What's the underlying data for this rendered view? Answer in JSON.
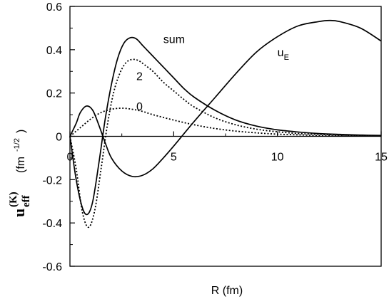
{
  "chart_data": {
    "type": "line",
    "xlabel": "R (fm)",
    "ylabel": {
      "symbol": "u",
      "superscript": "(K)",
      "subscript": "eff",
      "unit": "(fm",
      "unit_exp": "-1/2",
      "unit_close": ")"
    },
    "xlim": [
      0,
      15
    ],
    "ylim": [
      -0.6,
      0.6
    ],
    "x_ticks": [
      0,
      5,
      10,
      15
    ],
    "x_tick_labels": [
      "0",
      "5",
      "10",
      "15"
    ],
    "y_ticks": [
      -0.6,
      -0.4,
      -0.2,
      0,
      0.2,
      0.4,
      0.6
    ],
    "y_tick_labels": [
      "-0.6",
      "-0.4",
      "-0.2",
      "0",
      "0.2",
      "0.4",
      "0.6"
    ],
    "grid": false,
    "series": [
      {
        "name": "sum",
        "style": "solid",
        "x": [
          0,
          0.3,
          0.6,
          0.85,
          1.1,
          1.4,
          1.7,
          2.0,
          2.3,
          2.6,
          2.9,
          3.2,
          3.5,
          3.8,
          4.2,
          4.6,
          5.0,
          5.5,
          6.0,
          7.0,
          8.0,
          9.0,
          10.0,
          11.0,
          12.0,
          13.0,
          14.0,
          15.0
        ],
        "y": [
          0,
          -0.2,
          -0.33,
          -0.36,
          -0.3,
          -0.12,
          0.08,
          0.24,
          0.36,
          0.43,
          0.455,
          0.45,
          0.42,
          0.39,
          0.35,
          0.31,
          0.27,
          0.22,
          0.18,
          0.12,
          0.075,
          0.047,
          0.03,
          0.02,
          0.013,
          0.009,
          0.006,
          0.004
        ]
      },
      {
        "name": "2",
        "style": "dotted",
        "x": [
          0,
          0.3,
          0.6,
          0.9,
          1.2,
          1.5,
          1.8,
          2.1,
          2.4,
          2.7,
          3.0,
          3.3,
          3.6,
          4.0,
          4.5,
          5.0,
          5.5,
          6.0,
          7.0,
          8.0,
          9.0,
          10.0,
          11.0,
          12.0,
          13.0,
          14.0,
          15.0
        ],
        "y": [
          0,
          -0.15,
          -0.35,
          -0.42,
          -0.34,
          -0.15,
          0.05,
          0.2,
          0.29,
          0.34,
          0.355,
          0.35,
          0.33,
          0.3,
          0.25,
          0.21,
          0.17,
          0.135,
          0.085,
          0.053,
          0.033,
          0.021,
          0.013,
          0.009,
          0.006,
          0.004,
          0.003
        ]
      },
      {
        "name": "0",
        "style": "dotted",
        "x": [
          0,
          0.5,
          1.0,
          1.5,
          2.0,
          2.5,
          3.0,
          3.5,
          4.0,
          5.0,
          6.0,
          7.0,
          8.0,
          9.0,
          10.0,
          11.0,
          12.0,
          13.0,
          14.0,
          15.0
        ],
        "y": [
          0,
          0.04,
          0.08,
          0.11,
          0.125,
          0.13,
          0.125,
          0.115,
          0.1,
          0.075,
          0.053,
          0.036,
          0.024,
          0.016,
          0.01,
          0.007,
          0.004,
          0.003,
          0.002,
          0.001
        ]
      },
      {
        "name": "u_E",
        "style": "solid",
        "x": [
          0,
          0.3,
          0.5,
          0.8,
          1.1,
          1.4,
          1.7,
          2.0,
          2.5,
          3.0,
          3.5,
          4.0,
          4.5,
          5.0,
          6.0,
          7.0,
          8.0,
          9.0,
          10.0,
          11.0,
          12.0,
          12.5,
          13.0,
          14.0,
          15.0
        ],
        "y": [
          0,
          0.06,
          0.11,
          0.14,
          0.12,
          0.05,
          -0.03,
          -0.1,
          -0.16,
          -0.185,
          -0.18,
          -0.15,
          -0.1,
          -0.045,
          0.07,
          0.18,
          0.29,
          0.39,
          0.46,
          0.51,
          0.53,
          0.535,
          0.53,
          0.5,
          0.44
        ]
      }
    ],
    "annotations": [
      {
        "text": "sum",
        "x": 4.5,
        "y": 0.43
      },
      {
        "text": "2",
        "x": 3.2,
        "y": 0.26
      },
      {
        "text": "0",
        "x": 3.2,
        "y": 0.12
      },
      {
        "text": "u",
        "subscript": "E",
        "x": 10.0,
        "y": 0.37
      }
    ]
  }
}
